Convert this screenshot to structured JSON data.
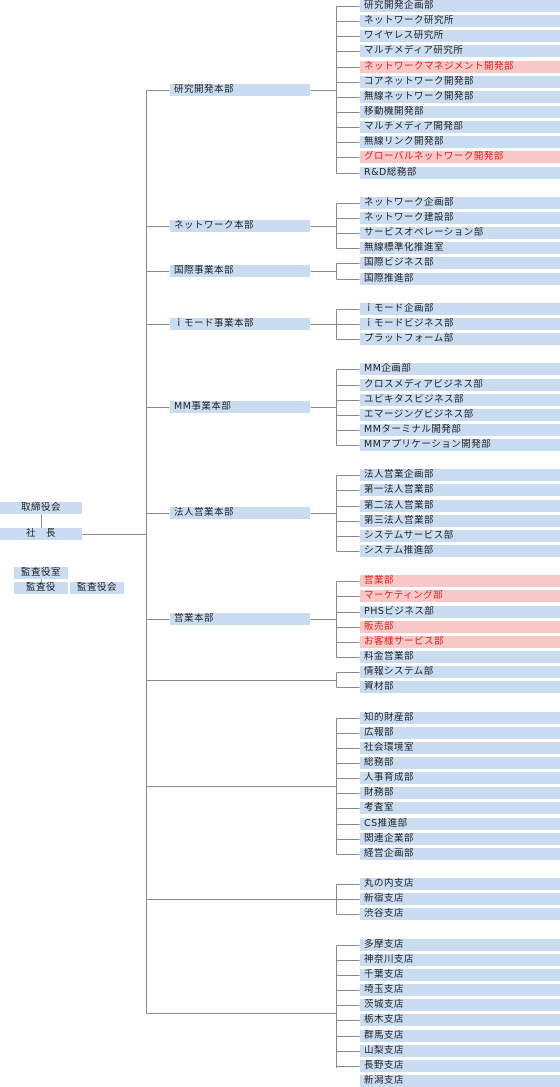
{
  "board": "取締役会",
  "president": "社　長",
  "audit": {
    "office": "監査役室",
    "auditor": "監査役",
    "board": "監査役会"
  },
  "divisions": [
    {
      "name": "研究開発本部",
      "depts": [
        {
          "name": "研究開発企画部"
        },
        {
          "name": "ネットワーク研究所"
        },
        {
          "name": "ワイヤレス研究所"
        },
        {
          "name": "マルチメディア研究所"
        },
        {
          "name": "ネットワークマネジメント開発部",
          "highlight": true
        },
        {
          "name": "コアネットワーク開発部"
        },
        {
          "name": "無線ネットワーク開発部"
        },
        {
          "name": "移動機開発部"
        },
        {
          "name": "マルチメディア開発部"
        },
        {
          "name": "無線リンク開発部"
        },
        {
          "name": "グローバルネットワーク開発部",
          "highlight": true
        },
        {
          "name": "R&D総務部"
        }
      ]
    },
    {
      "name": "ネットワーク本部",
      "depts": [
        {
          "name": "ネットワーク企画部"
        },
        {
          "name": "ネットワーク建設部"
        },
        {
          "name": "サービスオペレーション部"
        },
        {
          "name": "無線標準化推進室"
        }
      ]
    },
    {
      "name": "国際事業本部",
      "depts": [
        {
          "name": "国際ビジネス部"
        },
        {
          "name": "国際推進部"
        }
      ]
    },
    {
      "name": "ｉモード事業本部",
      "depts": [
        {
          "name": "ｉモード企画部"
        },
        {
          "name": "ｉモードビジネス部"
        },
        {
          "name": "プラットフォーム部"
        }
      ]
    },
    {
      "name": "MM事業本部",
      "depts": [
        {
          "name": "MM企画部"
        },
        {
          "name": "クロスメディアビジネス部"
        },
        {
          "name": "ユビキタスビジネス部"
        },
        {
          "name": "エマージングビジネス部"
        },
        {
          "name": "MMターミナル開発部"
        },
        {
          "name": "MMアプリケーション開発部"
        }
      ]
    },
    {
      "name": "法人営業本部",
      "depts": [
        {
          "name": "法人営業企画部"
        },
        {
          "name": "第一法人営業部"
        },
        {
          "name": "第二法人営業部"
        },
        {
          "name": "第三法人営業部"
        },
        {
          "name": "システムサービス部"
        },
        {
          "name": "システム推進部"
        }
      ]
    },
    {
      "name": "営業本部",
      "depts": [
        {
          "name": "営業部",
          "highlight": true
        },
        {
          "name": "マーケティング部",
          "highlight": true
        },
        {
          "name": "PHSビジネス部"
        },
        {
          "name": "販売部",
          "highlight": true
        },
        {
          "name": "お客様サービス部",
          "highlight": true
        },
        {
          "name": "料金営業部"
        }
      ]
    },
    {
      "name": "",
      "depts": [
        {
          "name": "情報システム部"
        },
        {
          "name": "資材部"
        }
      ]
    },
    {
      "name": "",
      "depts": [
        {
          "name": "知的財産部"
        },
        {
          "name": "広報部"
        },
        {
          "name": "社会環境室"
        },
        {
          "name": "総務部"
        },
        {
          "name": "人事育成部"
        },
        {
          "name": "財務部"
        },
        {
          "name": "考査室"
        },
        {
          "name": "CS推進部"
        },
        {
          "name": "関連企業部"
        },
        {
          "name": "経営企画部"
        }
      ]
    },
    {
      "name": "",
      "depts": [
        {
          "name": "丸の内支店"
        },
        {
          "name": "新宿支店"
        },
        {
          "name": "渋谷支店"
        }
      ]
    },
    {
      "name": "",
      "depts": [
        {
          "name": "多摩支店"
        },
        {
          "name": "神奈川支店"
        },
        {
          "name": "千葉支店"
        },
        {
          "name": "埼玉支店"
        },
        {
          "name": "茨城支店"
        },
        {
          "name": "栃木支店"
        },
        {
          "name": "群馬支店"
        },
        {
          "name": "山梨支店"
        },
        {
          "name": "長野支店"
        },
        {
          "name": "新潟支店"
        }
      ]
    }
  ]
}
